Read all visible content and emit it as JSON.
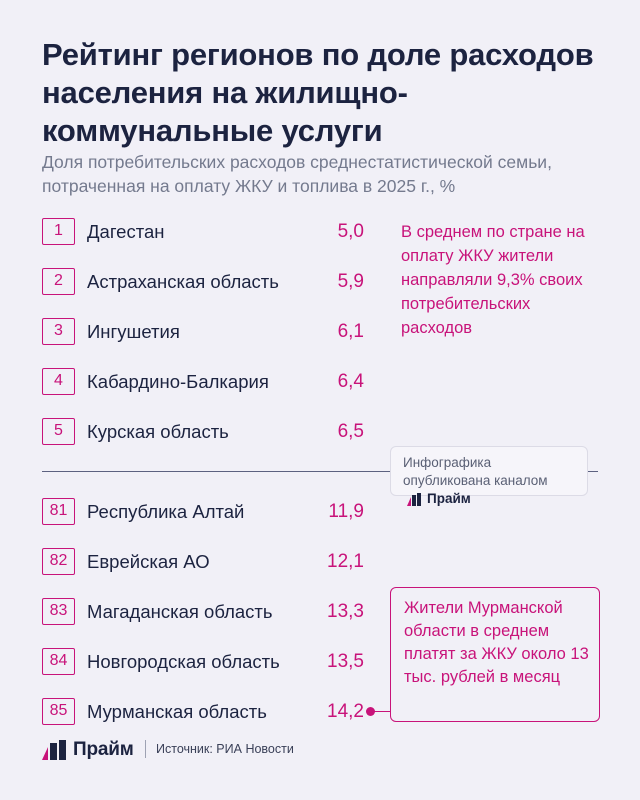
{
  "title": "Рейтинг регионов по доле расходов населения на жилищно-коммунальные услуги",
  "subtitle": "Доля потребительских расходов среднестатистической семьи, потраченная на оплату ЖКУ и топлива в 2025 г., %",
  "colors": {
    "accent": "#c8137a",
    "text": "#1c2340",
    "background": "#f1f0f7"
  },
  "chart_data": {
    "type": "table",
    "title": "Рейтинг регионов по доле расходов населения на жилищно-коммунальные услуги",
    "subtitle": "Доля потребительских расходов среднестатистической семьи, потраченная на оплату ЖКУ и топлива в 2025 г., %",
    "top": [
      {
        "rank": "1",
        "region": "Дагестан",
        "value": "5,0"
      },
      {
        "rank": "2",
        "region": "Астраханская область",
        "value": "5,9"
      },
      {
        "rank": "3",
        "region": "Ингушетия",
        "value": "6,1"
      },
      {
        "rank": "4",
        "region": "Кабардино-Балкария",
        "value": "6,4"
      },
      {
        "rank": "5",
        "region": "Курская область",
        "value": "6,5"
      }
    ],
    "bottom": [
      {
        "rank": "81",
        "region": "Республика Алтай",
        "value": "11,9"
      },
      {
        "rank": "82",
        "region": "Еврейская АО",
        "value": "12,1"
      },
      {
        "rank": "83",
        "region": "Магаданская область",
        "value": "13,3"
      },
      {
        "rank": "84",
        "region": "Новгородская область",
        "value": "13,5"
      },
      {
        "rank": "85",
        "region": "Мурманская область",
        "value": "14,2"
      }
    ]
  },
  "notes": {
    "average": "В среднем по стране на оплату ЖКУ жители направляли 9,3% своих потребительских расходов",
    "murmansk": "Жители Мурманской области в среднем платят за ЖКУ около 13 тыс. рублей в месяц"
  },
  "publication": {
    "text": "Инфографика опубликована каналом",
    "brand": "Прайм"
  },
  "footer": {
    "brand": "Прайм",
    "source": "Источник: РИА Новости",
    "logo_icon": "prime-logo-icon"
  }
}
